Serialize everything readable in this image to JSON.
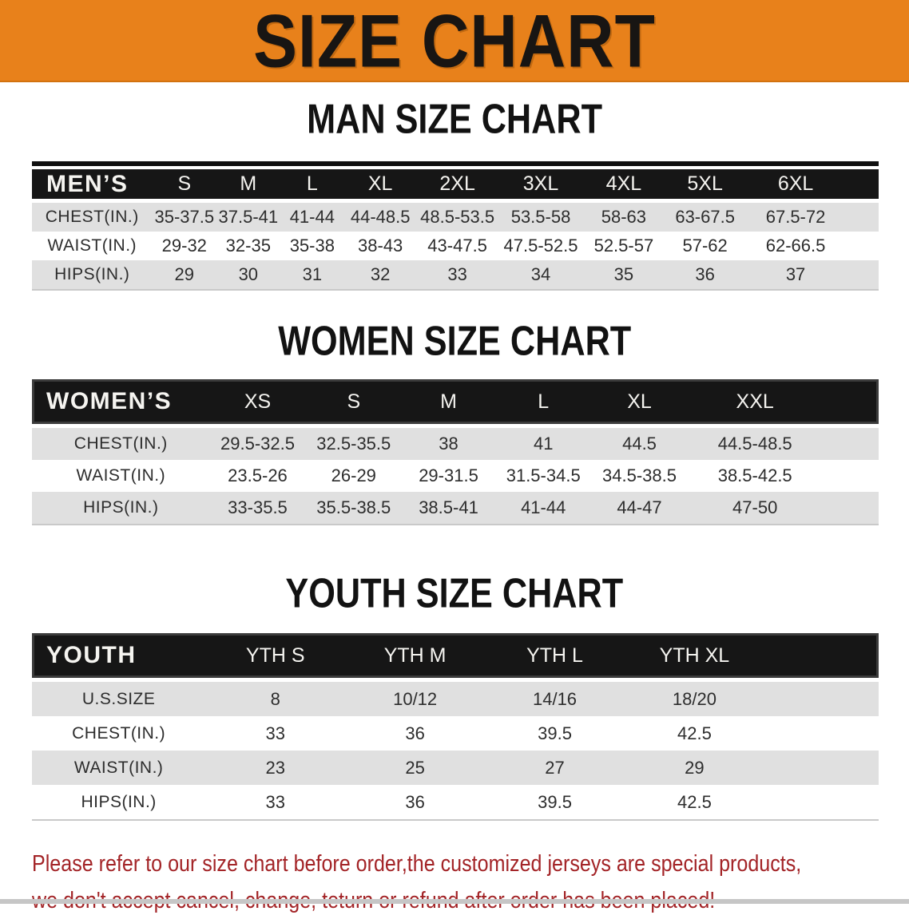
{
  "banner": {
    "title": "SIZE CHART",
    "bg_color": "#E8811B",
    "text_color": "#181513"
  },
  "tables": [
    {
      "heading": "MAN SIZE CHART",
      "header": [
        "MEN’S",
        "S",
        "M",
        "L",
        "XL",
        "2XL",
        "3XL",
        "4XL",
        "5XL",
        "6XL"
      ],
      "rows": [
        {
          "label": "CHEST(IN.)",
          "values": [
            "35-37.5",
            "37.5-41",
            "41-44",
            "44-48.5",
            "48.5-53.5",
            "53.5-58",
            "58-63",
            "63-67.5",
            "67.5-72"
          ]
        },
        {
          "label": "WAIST(IN.)",
          "values": [
            "29-32",
            "32-35",
            "35-38",
            "38-43",
            "43-47.5",
            "47.5-52.5",
            "52.5-57",
            "57-62",
            "62-66.5"
          ]
        },
        {
          "label": "HIPS(IN.)",
          "values": [
            "29",
            "30",
            "31",
            "32",
            "33",
            "34",
            "35",
            "36",
            "37"
          ]
        }
      ]
    },
    {
      "heading": "WOMEN SIZE CHART",
      "header": [
        "WOMEN’S",
        "XS",
        "S",
        "M",
        "L",
        "XL",
        "XXL"
      ],
      "rows": [
        {
          "label": "CHEST(IN.)",
          "values": [
            "29.5-32.5",
            "32.5-35.5",
            "38",
            "41",
            "44.5",
            "44.5-48.5"
          ]
        },
        {
          "label": "WAIST(IN.)",
          "values": [
            "23.5-26",
            "26-29",
            "29-31.5",
            "31.5-34.5",
            "34.5-38.5",
            "38.5-42.5"
          ]
        },
        {
          "label": "HIPS(IN.)",
          "values": [
            "33-35.5",
            "35.5-38.5",
            "38.5-41",
            "41-44",
            "44-47",
            "47-50"
          ]
        }
      ]
    },
    {
      "heading": "YOUTH SIZE CHART",
      "header": [
        "YOUTH",
        "YTH S",
        "YTH M",
        "YTH L",
        "YTH XL"
      ],
      "rows": [
        {
          "label": "U.S.SIZE",
          "values": [
            "8",
            "10/12",
            "14/16",
            "18/20"
          ]
        },
        {
          "label": "CHEST(IN.)",
          "values": [
            "33",
            "36",
            "39.5",
            "42.5"
          ]
        },
        {
          "label": "WAIST(IN.)",
          "values": [
            "23",
            "25",
            "27",
            "29"
          ]
        },
        {
          "label": "HIPS(IN.)",
          "values": [
            "33",
            "36",
            "39.5",
            "42.5"
          ]
        }
      ]
    }
  ],
  "footer": {
    "line1": "Please refer to our size chart before order,the customized jerseys are special products,",
    "line2": "we don't accept cancel, change, teturn or refund after order has been placed!",
    "text_color": "#A32427"
  }
}
